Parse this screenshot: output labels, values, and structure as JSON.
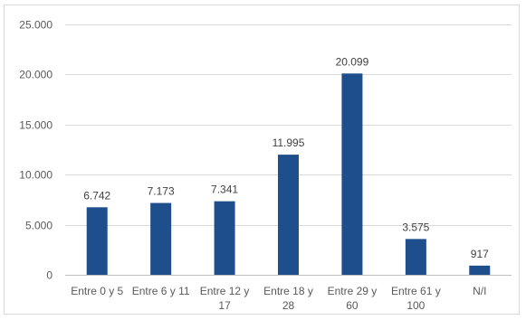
{
  "chart_data": {
    "type": "bar",
    "categories": [
      [
        "Entre 0 y 5"
      ],
      [
        "Entre 6 y 11"
      ],
      [
        "Entre 12 y",
        "17"
      ],
      [
        "Entre 18 y",
        "28"
      ],
      [
        "Entre 29 y",
        "60"
      ],
      [
        "Entre 61 y",
        "100"
      ],
      [
        "N/I"
      ]
    ],
    "values": [
      6742,
      7173,
      7341,
      11995,
      20099,
      3575,
      917
    ],
    "data_labels": [
      "6.742",
      "7.173",
      "7.341",
      "11.995",
      "20.099",
      "3.575",
      "917"
    ],
    "y_ticks": [
      0,
      5000,
      10000,
      15000,
      20000,
      25000
    ],
    "y_tick_labels": [
      "0",
      "5.000",
      "10.000",
      "15.000",
      "20.000",
      "25.000"
    ],
    "ylim": [
      0,
      25000
    ],
    "grid": true,
    "legend": "none",
    "bar_color": "#1f4e8c"
  }
}
